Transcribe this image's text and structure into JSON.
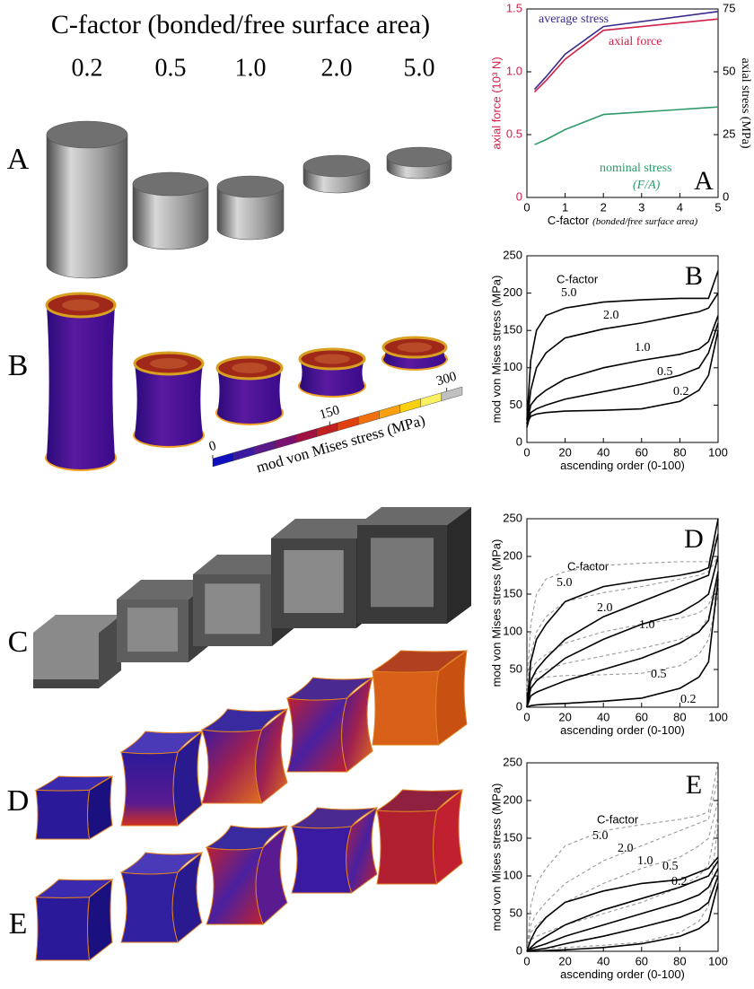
{
  "figure": {
    "title": "C-factor (bonded/free surface area)",
    "columns": [
      "0.2",
      "0.5",
      "1.0",
      "2.0",
      "5.0"
    ],
    "rows": [
      "A",
      "B",
      "C",
      "D",
      "E"
    ],
    "colorbar": {
      "label": "mod von Mises stress (MPa)",
      "lim": [
        0,
        320
      ],
      "ticks": [
        0,
        150,
        300
      ]
    }
  },
  "chart_data": [
    {
      "type": "line",
      "panel": "A",
      "xlabel": "C-factor",
      "xlabel_note": "(bonded/free surface area)",
      "ylabel": "axial force (10³ N)",
      "ylabel_color": "#d0204a",
      "y2label": "axial stress (MPa)",
      "x": [
        0.2,
        0.5,
        1,
        2,
        5
      ],
      "xlim": [
        0,
        5
      ],
      "xticks": [
        0,
        1,
        2,
        3,
        4,
        5
      ],
      "ylim": [
        0,
        1.5
      ],
      "yticks": [
        0,
        0.5,
        {
          "value": 1,
          "label": "1.0"
        },
        1.5
      ],
      "y2lim": [
        0,
        75
      ],
      "y2ticks": [
        0,
        25,
        50,
        75
      ],
      "series": [
        {
          "name": "average stress",
          "color": "#3a2a8c",
          "axis": "y2",
          "values": [
            43,
            48,
            57,
            68,
            74
          ]
        },
        {
          "name": "axial force",
          "color": "#d0204a",
          "values": [
            0.84,
            0.93,
            1.1,
            1.33,
            1.42
          ]
        },
        {
          "name": "nominal stress",
          "name_note": "(F/A)",
          "color": "#2e9a6a",
          "axis": "y2",
          "values": [
            21,
            23,
            27,
            33,
            36
          ]
        }
      ]
    },
    {
      "type": "line",
      "panel": "B",
      "xlabel": "ascending order (0-100)",
      "ylabel": "mod von Mises stress (MPa)",
      "labels_title": "C-factor",
      "x": [
        0,
        2,
        5,
        10,
        20,
        40,
        60,
        80,
        90,
        95,
        100
      ],
      "xlim": [
        0,
        100
      ],
      "xticks": [
        0,
        20,
        40,
        60,
        80,
        100
      ],
      "ylim": [
        0,
        250
      ],
      "yticks": [
        0,
        50,
        100,
        150,
        200,
        250
      ],
      "series": [
        {
          "name": "5.0",
          "color": "#000000",
          "values": [
            30,
            110,
            150,
            170,
            180,
            188,
            191,
            193,
            193,
            193,
            230
          ]
        },
        {
          "name": "2.0",
          "color": "#000000",
          "values": [
            25,
            70,
            100,
            120,
            140,
            152,
            160,
            170,
            175,
            180,
            200
          ]
        },
        {
          "name": "1.0",
          "color": "#000000",
          "values": [
            25,
            50,
            60,
            70,
            85,
            100,
            110,
            118,
            125,
            135,
            170
          ]
        },
        {
          "name": "0.5",
          "color": "#000000",
          "values": [
            20,
            40,
            45,
            50,
            58,
            68,
            78,
            90,
            100,
            120,
            160
          ]
        },
        {
          "name": "0.2",
          "color": "#000000",
          "values": [
            25,
            35,
            38,
            40,
            42,
            43,
            45,
            55,
            70,
            90,
            150
          ]
        }
      ]
    },
    {
      "type": "line",
      "panel": "D",
      "xlabel": "ascending order (0-100)",
      "ylabel": "mod von Mises stress (MPa)",
      "labels_title": "C-factor",
      "x": [
        0,
        2,
        5,
        10,
        20,
        40,
        60,
        80,
        90,
        95,
        100
      ],
      "xlim": [
        0,
        100
      ],
      "xticks": [
        0,
        20,
        40,
        60,
        80,
        100
      ],
      "ylim": [
        0,
        250
      ],
      "yticks": [
        0,
        50,
        100,
        150,
        200,
        250
      ],
      "series": [
        {
          "color": "#999999",
          "dash": true,
          "values": [
            30,
            110,
            150,
            170,
            180,
            188,
            191,
            193,
            193,
            193,
            230
          ]
        },
        {
          "color": "#999999",
          "dash": true,
          "values": [
            25,
            70,
            100,
            120,
            140,
            152,
            160,
            170,
            175,
            180,
            200
          ]
        },
        {
          "color": "#999999",
          "dash": true,
          "values": [
            25,
            50,
            60,
            70,
            85,
            100,
            110,
            118,
            125,
            135,
            170
          ]
        },
        {
          "color": "#999999",
          "dash": true,
          "values": [
            20,
            40,
            45,
            50,
            58,
            68,
            78,
            90,
            100,
            120,
            160
          ]
        },
        {
          "color": "#999999",
          "dash": true,
          "values": [
            25,
            35,
            38,
            40,
            42,
            43,
            45,
            55,
            70,
            90,
            150
          ]
        },
        {
          "name": "5.0",
          "color": "#000000",
          "values": [
            0,
            60,
            90,
            110,
            140,
            160,
            168,
            175,
            180,
            185,
            250
          ]
        },
        {
          "name": "2.0",
          "color": "#000000",
          "values": [
            0,
            35,
            50,
            65,
            90,
            120,
            140,
            160,
            170,
            175,
            230
          ]
        },
        {
          "name": "1.0",
          "color": "#000000",
          "values": [
            0,
            25,
            35,
            45,
            65,
            90,
            110,
            125,
            140,
            150,
            200
          ]
        },
        {
          "name": "0.5",
          "color": "#000000",
          "values": [
            0,
            15,
            20,
            25,
            35,
            50,
            65,
            85,
            100,
            115,
            180
          ]
        },
        {
          "name": "0.2",
          "color": "#000000",
          "values": [
            0,
            2,
            3,
            4,
            5,
            8,
            12,
            25,
            40,
            60,
            170
          ]
        }
      ]
    },
    {
      "type": "line",
      "panel": "E",
      "xlabel": "ascending order (0-100)",
      "ylabel": "mod von Mises stress (MPa)",
      "labels_title": "C-factor",
      "x": [
        0,
        2,
        5,
        10,
        20,
        40,
        60,
        80,
        90,
        95,
        100
      ],
      "xlim": [
        0,
        100
      ],
      "xticks": [
        0,
        20,
        40,
        60,
        80,
        100
      ],
      "ylim": [
        0,
        250
      ],
      "yticks": [
        0,
        50,
        100,
        150,
        200,
        250
      ],
      "series": [
        {
          "color": "#999999",
          "dash": true,
          "values": [
            0,
            60,
            90,
            110,
            140,
            160,
            168,
            175,
            180,
            185,
            250
          ]
        },
        {
          "color": "#999999",
          "dash": true,
          "values": [
            0,
            35,
            50,
            65,
            90,
            120,
            140,
            160,
            170,
            175,
            230
          ]
        },
        {
          "color": "#999999",
          "dash": true,
          "values": [
            0,
            25,
            35,
            45,
            65,
            90,
            110,
            125,
            140,
            150,
            200
          ]
        },
        {
          "color": "#999999",
          "dash": true,
          "values": [
            0,
            15,
            20,
            25,
            35,
            50,
            65,
            85,
            100,
            115,
            180
          ]
        },
        {
          "color": "#999999",
          "dash": true,
          "values": [
            0,
            2,
            3,
            4,
            5,
            8,
            12,
            25,
            40,
            60,
            170
          ]
        },
        {
          "name": "5.0",
          "color": "#000000",
          "values": [
            0,
            15,
            30,
            45,
            65,
            80,
            90,
            95,
            105,
            110,
            125
          ]
        },
        {
          "name": "2.0",
          "color": "#000000",
          "values": [
            0,
            5,
            12,
            20,
            35,
            55,
            70,
            85,
            95,
            100,
            120
          ]
        },
        {
          "name": "1.0",
          "color": "#000000",
          "values": [
            0,
            3,
            6,
            10,
            20,
            35,
            50,
            65,
            75,
            85,
            110
          ]
        },
        {
          "name": "0.5",
          "color": "#000000",
          "values": [
            0,
            1,
            2,
            4,
            10,
            20,
            32,
            45,
            55,
            65,
            100
          ]
        },
        {
          "name": "0.2",
          "color": "#000000",
          "values": [
            0,
            0,
            0,
            1,
            2,
            5,
            10,
            20,
            30,
            40,
            90
          ]
        }
      ]
    }
  ]
}
